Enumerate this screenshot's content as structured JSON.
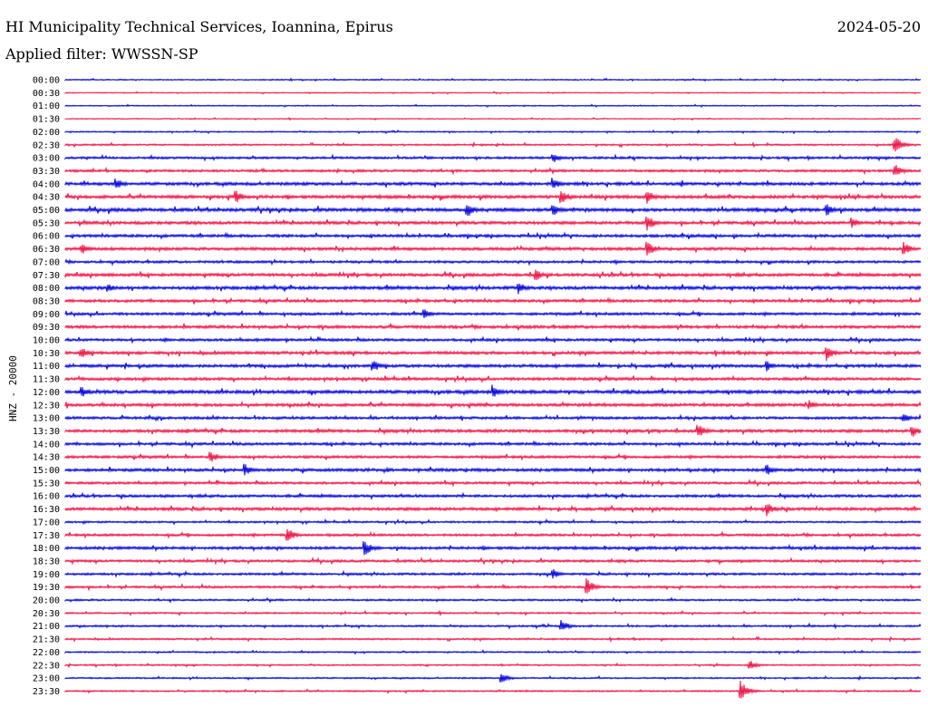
{
  "header": {
    "title": "HI Municipality Technical Services, Ioannina, Epirus",
    "date": "2024-05-20",
    "filter": "Applied filter: WWSSN-SP"
  },
  "chart_data": {
    "type": "line",
    "subtype": "helicorder",
    "ylabel": "HNZ - 20000",
    "colors": [
      "#0000dd",
      "#ee1144"
    ],
    "rows": [
      {
        "label": "00:00",
        "color": "blue",
        "amp": 0.6
      },
      {
        "label": "00:30",
        "color": "red",
        "amp": 0.5
      },
      {
        "label": "01:00",
        "color": "blue",
        "amp": 0.6
      },
      {
        "label": "01:30",
        "color": "red",
        "amp": 0.5
      },
      {
        "label": "02:00",
        "color": "blue",
        "amp": 0.7
      },
      {
        "label": "02:30",
        "color": "red",
        "amp": 0.9
      },
      {
        "label": "03:00",
        "color": "blue",
        "amp": 1.2
      },
      {
        "label": "03:30",
        "color": "red",
        "amp": 1.3
      },
      {
        "label": "04:00",
        "color": "blue",
        "amp": 1.6
      },
      {
        "label": "04:30",
        "color": "red",
        "amp": 1.7
      },
      {
        "label": "05:00",
        "color": "blue",
        "amp": 1.8
      },
      {
        "label": "05:30",
        "color": "red",
        "amp": 1.6
      },
      {
        "label": "06:00",
        "color": "blue",
        "amp": 1.5
      },
      {
        "label": "06:30",
        "color": "red",
        "amp": 1.6
      },
      {
        "label": "07:00",
        "color": "blue",
        "amp": 1.3
      },
      {
        "label": "07:30",
        "color": "red",
        "amp": 1.6
      },
      {
        "label": "08:00",
        "color": "blue",
        "amp": 1.7
      },
      {
        "label": "08:30",
        "color": "red",
        "amp": 1.5
      },
      {
        "label": "09:00",
        "color": "blue",
        "amp": 1.4
      },
      {
        "label": "09:30",
        "color": "red",
        "amp": 1.6
      },
      {
        "label": "10:00",
        "color": "blue",
        "amp": 1.4
      },
      {
        "label": "10:30",
        "color": "red",
        "amp": 1.6
      },
      {
        "label": "11:00",
        "color": "blue",
        "amp": 1.6
      },
      {
        "label": "11:30",
        "color": "red",
        "amp": 1.5
      },
      {
        "label": "12:00",
        "color": "blue",
        "amp": 1.8
      },
      {
        "label": "12:30",
        "color": "red",
        "amp": 1.6
      },
      {
        "label": "13:00",
        "color": "blue",
        "amp": 1.4
      },
      {
        "label": "13:30",
        "color": "red",
        "amp": 1.6
      },
      {
        "label": "14:00",
        "color": "blue",
        "amp": 1.4
      },
      {
        "label": "14:30",
        "color": "red",
        "amp": 1.4
      },
      {
        "label": "15:00",
        "color": "blue",
        "amp": 1.6
      },
      {
        "label": "15:30",
        "color": "red",
        "amp": 1.3
      },
      {
        "label": "16:00",
        "color": "blue",
        "amp": 1.4
      },
      {
        "label": "16:30",
        "color": "red",
        "amp": 1.6
      },
      {
        "label": "17:00",
        "color": "blue",
        "amp": 1.0
      },
      {
        "label": "17:30",
        "color": "red",
        "amp": 1.3
      },
      {
        "label": "18:00",
        "color": "blue",
        "amp": 1.5
      },
      {
        "label": "18:30",
        "color": "red",
        "amp": 1.3
      },
      {
        "label": "19:00",
        "color": "blue",
        "amp": 1.2
      },
      {
        "label": "19:30",
        "color": "red",
        "amp": 1.2
      },
      {
        "label": "20:00",
        "color": "blue",
        "amp": 1.0
      },
      {
        "label": "20:30",
        "color": "red",
        "amp": 0.9
      },
      {
        "label": "21:00",
        "color": "blue",
        "amp": 1.0
      },
      {
        "label": "21:30",
        "color": "red",
        "amp": 0.9
      },
      {
        "label": "22:00",
        "color": "blue",
        "amp": 0.8
      },
      {
        "label": "22:30",
        "color": "red",
        "amp": 0.8
      },
      {
        "label": "23:00",
        "color": "blue",
        "amp": 0.8
      },
      {
        "label": "23:30",
        "color": "red",
        "amp": 0.8
      }
    ],
    "events": [
      {
        "row": "02:30",
        "t": 0.97,
        "amp": 10
      },
      {
        "row": "03:00",
        "t": 0.57,
        "amp": 6
      },
      {
        "row": "03:30",
        "t": 0.97,
        "amp": 8
      },
      {
        "row": "04:00",
        "t": 0.06,
        "amp": 6
      },
      {
        "row": "04:00",
        "t": 0.57,
        "amp": 7
      },
      {
        "row": "04:30",
        "t": 0.2,
        "amp": 7
      },
      {
        "row": "04:30",
        "t": 0.58,
        "amp": 9
      },
      {
        "row": "04:30",
        "t": 0.68,
        "amp": 8
      },
      {
        "row": "05:00",
        "t": 0.47,
        "amp": 9
      },
      {
        "row": "05:00",
        "t": 0.57,
        "amp": 7
      },
      {
        "row": "05:00",
        "t": 0.89,
        "amp": 7
      },
      {
        "row": "05:30",
        "t": 0.68,
        "amp": 10
      },
      {
        "row": "05:30",
        "t": 0.92,
        "amp": 6
      },
      {
        "row": "06:30",
        "t": 0.02,
        "amp": 6
      },
      {
        "row": "06:30",
        "t": 0.68,
        "amp": 10
      },
      {
        "row": "06:30",
        "t": 0.98,
        "amp": 8
      },
      {
        "row": "07:30",
        "t": 0.55,
        "amp": 7
      },
      {
        "row": "08:00",
        "t": 0.05,
        "amp": 5
      },
      {
        "row": "08:00",
        "t": 0.53,
        "amp": 7
      },
      {
        "row": "09:00",
        "t": 0.42,
        "amp": 6
      },
      {
        "row": "10:30",
        "t": 0.02,
        "amp": 6
      },
      {
        "row": "10:30",
        "t": 0.89,
        "amp": 10
      },
      {
        "row": "11:00",
        "t": 0.36,
        "amp": 7
      },
      {
        "row": "11:00",
        "t": 0.82,
        "amp": 6
      },
      {
        "row": "12:00",
        "t": 0.02,
        "amp": 6
      },
      {
        "row": "12:00",
        "t": 0.5,
        "amp": 8
      },
      {
        "row": "12:30",
        "t": 0.87,
        "amp": 6
      },
      {
        "row": "13:00",
        "t": 0.98,
        "amp": 6
      },
      {
        "row": "13:30",
        "t": 0.74,
        "amp": 9
      },
      {
        "row": "13:30",
        "t": 0.99,
        "amp": 8
      },
      {
        "row": "14:30",
        "t": 0.17,
        "amp": 7
      },
      {
        "row": "15:00",
        "t": 0.21,
        "amp": 7
      },
      {
        "row": "15:00",
        "t": 0.82,
        "amp": 7
      },
      {
        "row": "16:30",
        "t": 0.82,
        "amp": 8
      },
      {
        "row": "17:30",
        "t": 0.26,
        "amp": 9
      },
      {
        "row": "18:00",
        "t": 0.35,
        "amp": 9
      },
      {
        "row": "19:00",
        "t": 0.57,
        "amp": 6
      },
      {
        "row": "19:30",
        "t": 0.61,
        "amp": 10
      },
      {
        "row": "21:00",
        "t": 0.58,
        "amp": 7
      },
      {
        "row": "22:30",
        "t": 0.8,
        "amp": 6
      },
      {
        "row": "23:00",
        "t": 0.51,
        "amp": 6
      },
      {
        "row": "23:30",
        "t": 0.79,
        "amp": 12
      }
    ]
  }
}
